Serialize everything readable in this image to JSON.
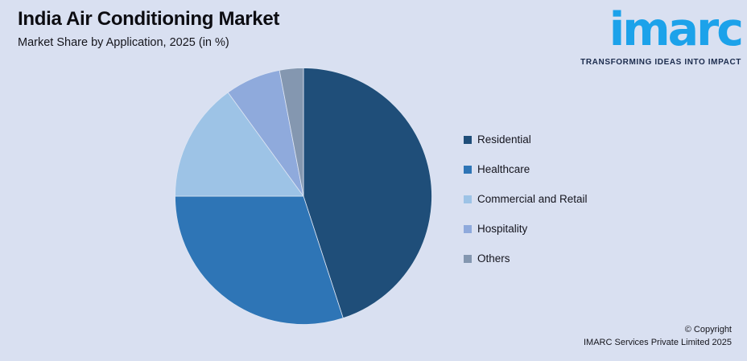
{
  "header": {
    "title": "India Air Conditioning Market",
    "subtitle": "Market Share by Application, 2025 (in %)"
  },
  "logo": {
    "wordmark": "imarc",
    "tagline": "TRANSFORMING IDEAS INTO IMPACT",
    "wordmark_color": "#1ca2ea",
    "tagline_color": "#1b2b4d"
  },
  "chart_data": {
    "type": "pie",
    "title": "India Air Conditioning Market",
    "subtitle": "Market Share by Application, 2025 (in %)",
    "labels": [
      "Residential",
      "Healthcare",
      "Commercial and Retail",
      "Hospitality",
      "Others"
    ],
    "values": [
      45,
      30,
      15,
      7,
      3
    ],
    "colors": [
      "#1f4e79",
      "#2e75b6",
      "#9dc3e6",
      "#8faadc",
      "#8497b0"
    ],
    "unit": "%",
    "start_angle_deg": 0,
    "direction": "clockwise",
    "legend_position": "right",
    "data_labels_shown": false
  },
  "footer": {
    "copyright_line1": "© Copyright",
    "copyright_line2": "IMARC Services Private Limited 2025"
  },
  "colors": {
    "background": "#d9e0f1",
    "slice_separator": "#dde5f3",
    "text": "#15151c"
  }
}
